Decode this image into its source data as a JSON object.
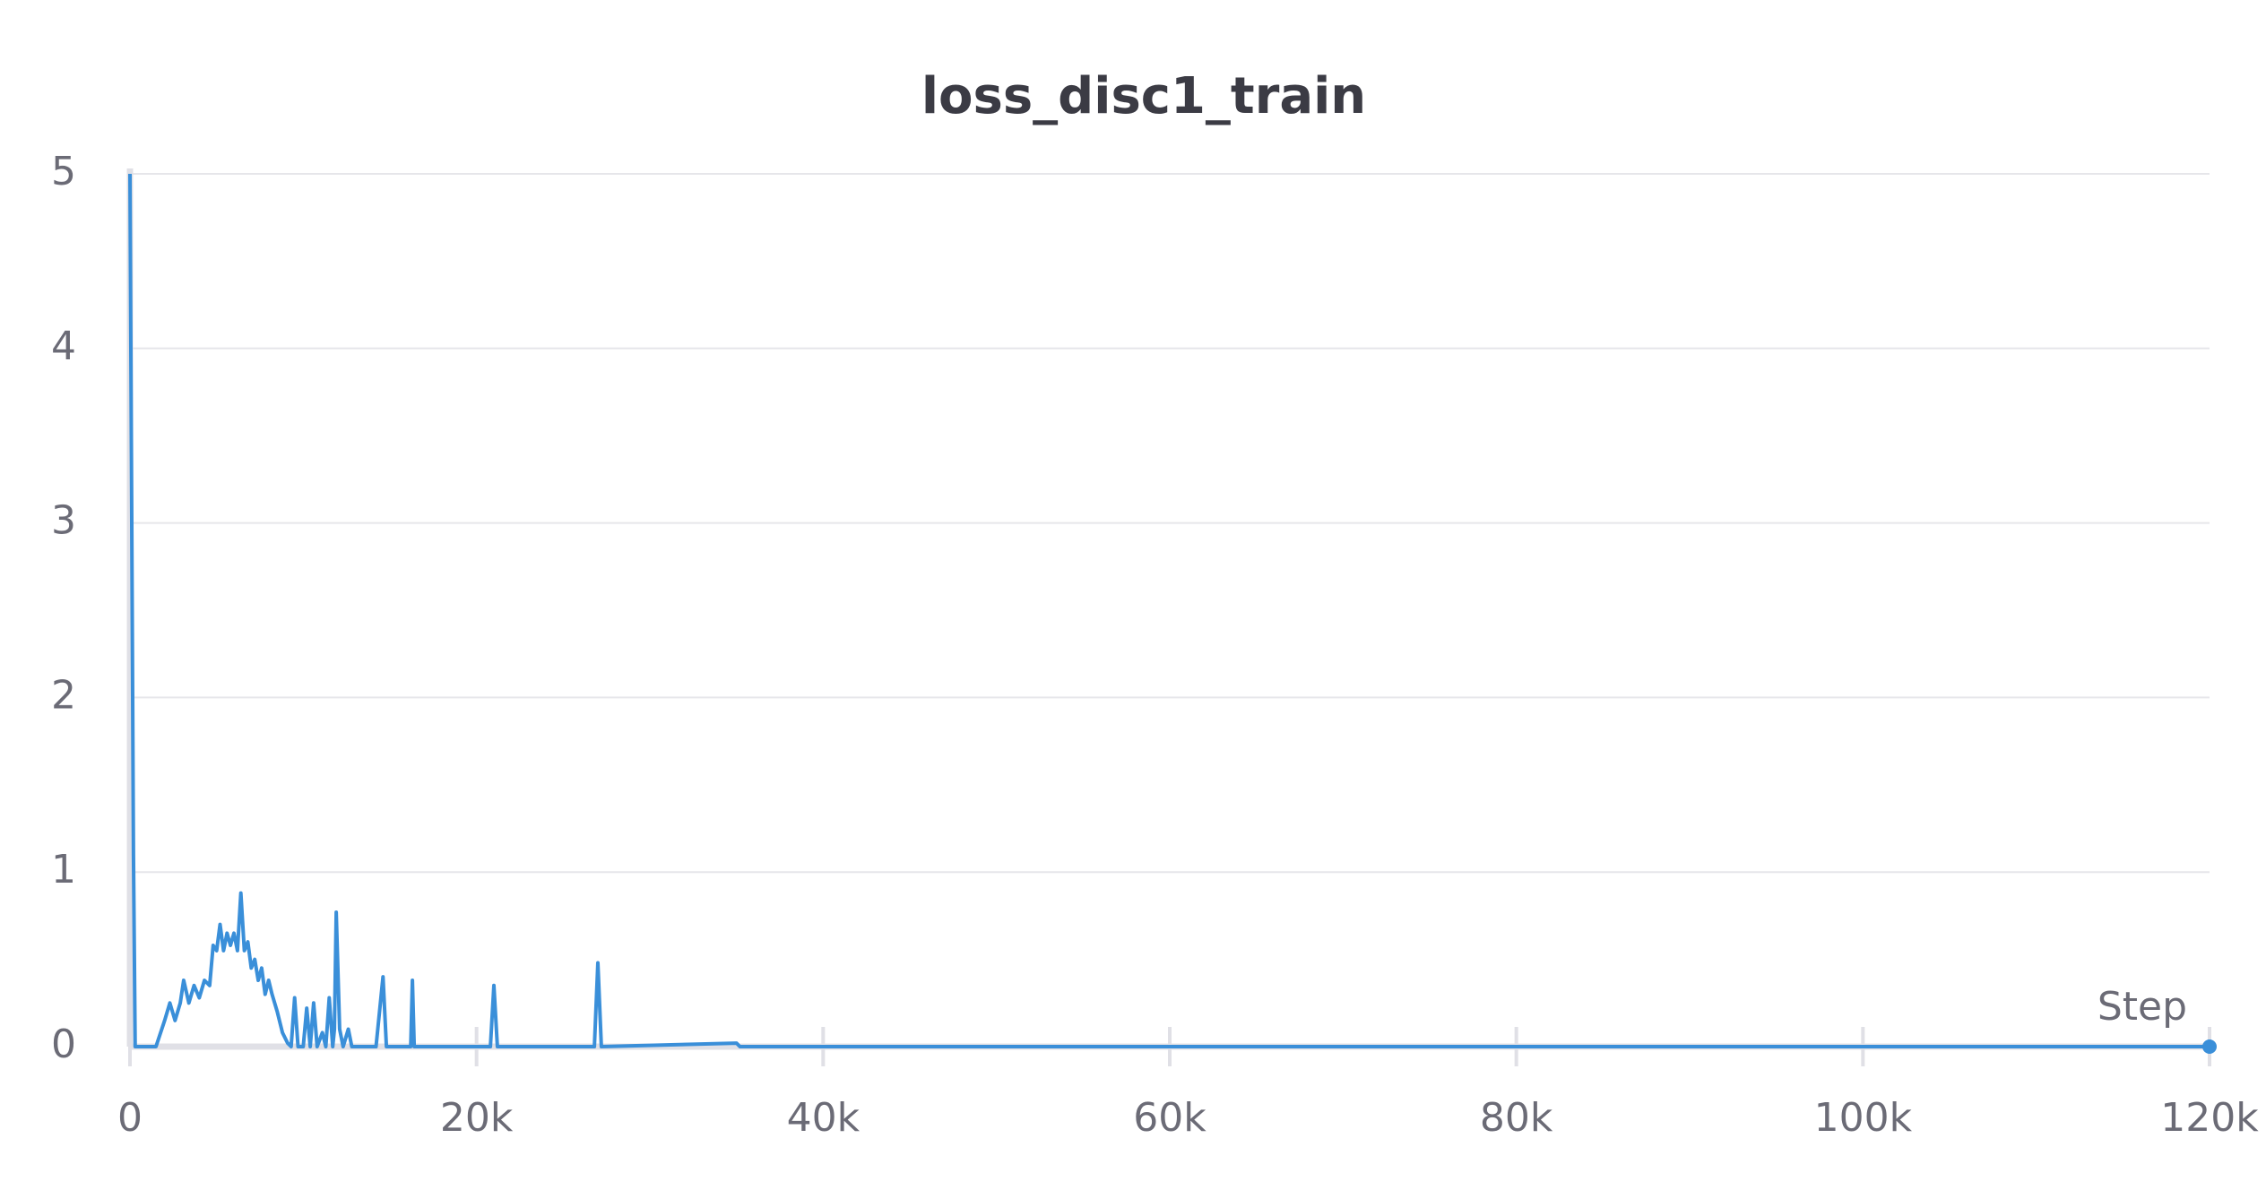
{
  "chart_data": {
    "type": "line",
    "title": "loss_disc1_train",
    "xlabel": "Step",
    "xlim": [
      0,
      120000
    ],
    "ylim": [
      0,
      5
    ],
    "xticks": [
      0,
      {
        "value": 20000,
        "label": "20k"
      },
      {
        "value": 40000,
        "label": "40k"
      },
      {
        "value": 60000,
        "label": "60k"
      },
      {
        "value": 80000,
        "label": "80k"
      },
      {
        "value": 100000,
        "label": "100k"
      },
      {
        "value": 120000,
        "label": "120k"
      }
    ],
    "yticks": [
      0,
      1,
      2,
      3,
      4,
      5
    ],
    "grid": true,
    "series": [
      {
        "name": "loss_disc1_train",
        "color": "#3a8fd9",
        "x": [
          0,
          200,
          300,
          1500,
          2000,
          2300,
          2600,
          2900,
          3100,
          3400,
          3700,
          4000,
          4300,
          4600,
          4800,
          5000,
          5200,
          5400,
          5600,
          5800,
          6000,
          6200,
          6400,
          6600,
          6800,
          7000,
          7200,
          7400,
          7600,
          7800,
          8000,
          8200,
          8500,
          8800,
          9100,
          9300,
          9500,
          9700,
          10000,
          10200,
          10400,
          10600,
          10800,
          11100,
          11300,
          11500,
          11700,
          11800,
          11900,
          12100,
          12300,
          12600,
          12800,
          14200,
          14600,
          14800,
          16200,
          16300,
          16400,
          20800,
          21000,
          21200,
          26800,
          27000,
          27200,
          35000,
          35200,
          120000
        ],
        "values": [
          5.0,
          1.1,
          0,
          0,
          0.15,
          0.25,
          0.15,
          0.25,
          0.38,
          0.25,
          0.35,
          0.28,
          0.38,
          0.35,
          0.58,
          0.55,
          0.7,
          0.55,
          0.65,
          0.58,
          0.65,
          0.55,
          0.88,
          0.55,
          0.6,
          0.45,
          0.5,
          0.38,
          0.45,
          0.3,
          0.38,
          0.3,
          0.2,
          0.08,
          0.02,
          0,
          0.28,
          0,
          0,
          0.22,
          0,
          0.25,
          0,
          0.08,
          0,
          0.28,
          0,
          0.1,
          0.77,
          0.1,
          0,
          0.1,
          0,
          0,
          0.4,
          0,
          0,
          0.38,
          0,
          0,
          0.35,
          0,
          0,
          0.48,
          0,
          0.02,
          0,
          0
        ]
      }
    ]
  }
}
